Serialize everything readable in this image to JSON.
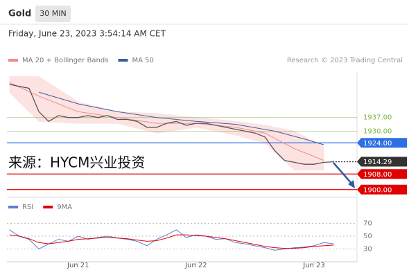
{
  "header": {
    "symbol": "Gold",
    "interval": "30 MIN",
    "datetime": "Friday, June 23, 2023 3:54:14 AM CET"
  },
  "watermark": "来源：HYCM兴业投资",
  "chart_data": [
    {
      "type": "line",
      "credit": "Research © 2023 Trading Central",
      "xlim": [
        -14.5,
        56.75
      ],
      "ylim": [
        1896,
        1960
      ],
      "price": {
        "color": "#555555",
        "x": [
          -14,
          -12,
          -10,
          -8,
          -6,
          -4,
          -2,
          0,
          2,
          4,
          6,
          8,
          10,
          12,
          14,
          16,
          18,
          20,
          22,
          24,
          26,
          28,
          30,
          32,
          34,
          36,
          38,
          40,
          42,
          44,
          46,
          48,
          50,
          52
        ],
        "values": [
          1954,
          1953,
          1952,
          1940,
          1935,
          1938,
          1937,
          1937,
          1938,
          1937,
          1938,
          1936,
          1936,
          1935,
          1932,
          1932,
          1934,
          1935,
          1933,
          1934,
          1934,
          1933,
          1932,
          1931,
          1930,
          1929,
          1927,
          1920,
          1915,
          1914,
          1913,
          1913,
          1914,
          1914.29
        ]
      },
      "series": [
        {
          "name": "MA 20 + Bollinger Bands",
          "color": "#f08a8a",
          "band_color": "#fde2e2",
          "x": [
            -14,
            -8,
            0,
            8,
            16,
            24,
            32,
            38,
            44,
            50
          ],
          "values": [
            1955,
            1948,
            1940,
            1937,
            1934,
            1934,
            1932,
            1929,
            1921,
            1915
          ],
          "upper": [
            1958,
            1958,
            1945,
            1940,
            1939,
            1937,
            1935,
            1933,
            1930,
            1922
          ],
          "lower": [
            1950,
            1935,
            1934,
            1934,
            1929,
            1932,
            1928,
            1924,
            1910,
            1910
          ]
        },
        {
          "name": "MA 50",
          "color": "#3b5f9e",
          "x": [
            -8,
            0,
            8,
            16,
            24,
            32,
            40,
            46,
            50
          ],
          "values": [
            1950,
            1944,
            1940,
            1937,
            1935,
            1933.5,
            1930,
            1926,
            1923
          ]
        }
      ],
      "levels": [
        {
          "value": 1937,
          "label": "1937.00",
          "color": "#7cb342",
          "boxed": false
        },
        {
          "value": 1930,
          "label": "1930.00",
          "color": "#7cb342",
          "boxed": false
        },
        {
          "value": 1924,
          "label": "1924.00",
          "color": "#2f6fe4",
          "boxed": true
        },
        {
          "value": 1914.29,
          "label": "1914.29",
          "color": "#333333",
          "boxed": true
        },
        {
          "value": 1908,
          "label": "1908.00",
          "color": "#e00000",
          "boxed": true
        },
        {
          "value": 1900,
          "label": "1900.00",
          "color": "#e00000",
          "boxed": true
        }
      ]
    },
    {
      "type": "line",
      "xlim": [
        -14.5,
        56.75
      ],
      "ylim": [
        10,
        90
      ],
      "yticks": [
        70,
        50,
        30
      ],
      "xticks": [
        {
          "value": 0,
          "label": "Jun 21"
        },
        {
          "value": 24,
          "label": "Jun 22"
        },
        {
          "value": 48,
          "label": "Jun 23"
        }
      ],
      "x": [
        -14,
        -12,
        -10,
        -8,
        -6,
        -4,
        -2,
        0,
        2,
        4,
        6,
        8,
        10,
        12,
        14,
        16,
        18,
        20,
        22,
        24,
        26,
        28,
        30,
        32,
        34,
        36,
        38,
        40,
        42,
        44,
        46,
        48,
        50,
        52
      ],
      "series": [
        {
          "name": "RSI",
          "color": "#5b7fd1",
          "values": [
            60,
            50,
            45,
            30,
            38,
            45,
            42,
            50,
            45,
            48,
            50,
            47,
            45,
            42,
            35,
            45,
            52,
            60,
            48,
            52,
            50,
            45,
            46,
            40,
            38,
            35,
            32,
            28,
            30,
            32,
            33,
            35,
            40,
            38
          ]
        },
        {
          "name": "9MA",
          "color": "#e00000",
          "values": [
            52,
            50,
            46,
            40,
            38,
            40,
            42,
            45,
            46,
            47,
            48,
            47,
            46,
            44,
            42,
            43,
            47,
            52,
            52,
            51,
            50,
            48,
            46,
            43,
            40,
            37,
            34,
            32,
            31,
            31,
            32,
            34,
            35,
            36
          ]
        }
      ]
    }
  ]
}
